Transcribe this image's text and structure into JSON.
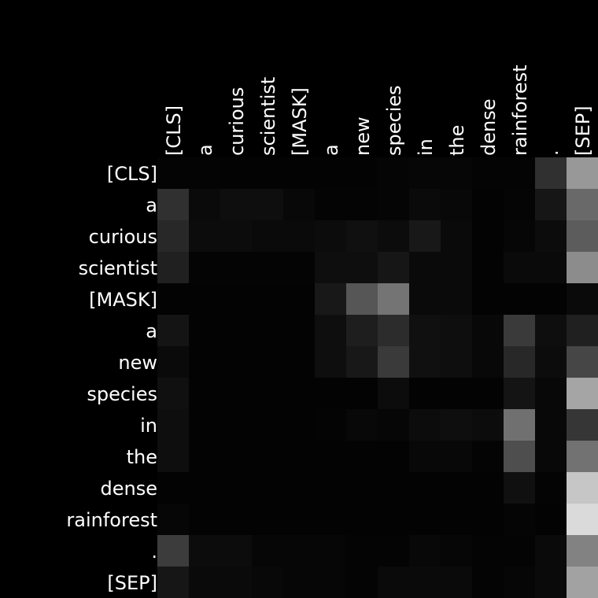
{
  "chart_data": {
    "type": "heatmap",
    "title": "",
    "xlabel": "",
    "ylabel": "",
    "colormap": "grayscale",
    "vmin": 0,
    "vmax": 255,
    "x_tokens": [
      "[CLS]",
      "a",
      "curious",
      "scientist",
      "[MASK]",
      "a",
      "new",
      "species",
      "in",
      "the",
      "dense",
      "rainforest",
      ".",
      "[SEP]"
    ],
    "y_tokens": [
      "[CLS]",
      "a",
      "curious",
      "scientist",
      "[MASK]",
      "a",
      "new",
      "species",
      "in",
      "the",
      "dense",
      "rainforest",
      ".",
      "[SEP]"
    ],
    "values": [
      [
        4,
        4,
        3,
        3,
        3,
        3,
        3,
        5,
        6,
        6,
        4,
        4,
        48,
        152
      ],
      [
        48,
        10,
        14,
        14,
        8,
        4,
        4,
        5,
        10,
        8,
        3,
        5,
        22,
        105
      ],
      [
        40,
        12,
        12,
        10,
        10,
        12,
        16,
        12,
        24,
        10,
        3,
        6,
        12,
        92
      ],
      [
        32,
        4,
        4,
        4,
        4,
        14,
        14,
        22,
        10,
        10,
        3,
        10,
        10,
        140
      ],
      [
        3,
        3,
        3,
        3,
        3,
        24,
        86,
        116,
        10,
        10,
        3,
        3,
        3,
        10
      ],
      [
        20,
        3,
        3,
        3,
        3,
        14,
        30,
        44,
        16,
        14,
        8,
        58,
        14,
        32
      ],
      [
        10,
        3,
        3,
        3,
        3,
        14,
        24,
        58,
        16,
        14,
        8,
        40,
        12,
        70
      ],
      [
        16,
        3,
        3,
        3,
        3,
        3,
        3,
        12,
        3,
        3,
        3,
        20,
        8,
        165
      ],
      [
        14,
        3,
        3,
        3,
        3,
        4,
        8,
        6,
        12,
        14,
        12,
        112,
        8,
        54
      ],
      [
        14,
        3,
        3,
        3,
        3,
        3,
        3,
        3,
        8,
        8,
        4,
        78,
        8,
        114
      ],
      [
        3,
        3,
        3,
        3,
        3,
        3,
        3,
        3,
        3,
        3,
        3,
        16,
        4,
        198
      ],
      [
        6,
        3,
        3,
        3,
        3,
        3,
        3,
        3,
        3,
        3,
        3,
        5,
        3,
        218
      ],
      [
        60,
        12,
        12,
        6,
        6,
        6,
        4,
        4,
        8,
        6,
        4,
        4,
        10,
        130
      ],
      [
        22,
        10,
        10,
        8,
        6,
        6,
        4,
        10,
        10,
        10,
        4,
        6,
        10,
        162
      ]
    ]
  }
}
